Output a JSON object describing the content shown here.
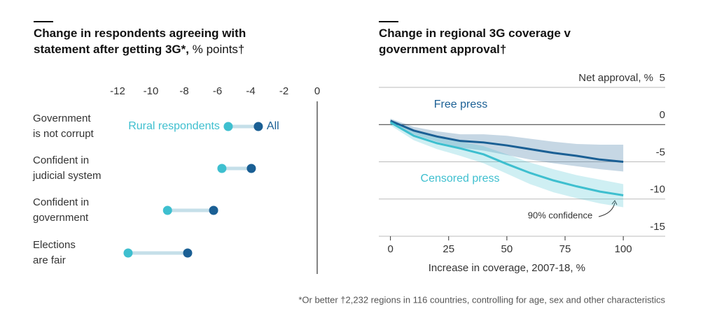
{
  "chart_data": [
    {
      "type": "dumbbell",
      "title": "Change in respondents agreeing with statement after getting 3G*,",
      "subtitle": "% points†",
      "categories": [
        [
          "Government",
          "is not corrupt"
        ],
        [
          "Confident in",
          "judicial system"
        ],
        [
          "Confident in",
          "government"
        ],
        [
          "Elections",
          "are fair"
        ]
      ],
      "series": [
        {
          "name": "Rural respondents",
          "color": "#3ebfcf",
          "values": [
            -5.35,
            -5.73,
            -9.0,
            -11.37
          ]
        },
        {
          "name": "All",
          "color": "#1a5f94",
          "values": [
            -3.54,
            -3.96,
            -6.23,
            -7.79
          ]
        }
      ],
      "xlim": [
        -12,
        0
      ],
      "xticks": [
        -12,
        -10,
        -8,
        -6,
        -4,
        -2,
        0
      ]
    },
    {
      "type": "band-line",
      "title": "Change in regional 3G coverage v government approval†",
      "x": [
        0,
        10,
        20,
        30,
        40,
        50,
        60,
        70,
        80,
        90,
        100
      ],
      "series": [
        {
          "name": "Free press",
          "color": "#1a5f94",
          "values": [
            0.5,
            -0.8,
            -1.6,
            -2.2,
            -2.4,
            -2.8,
            -3.3,
            -3.8,
            -4.2,
            -4.7,
            -5.0
          ],
          "lower": [
            0.2,
            -1.3,
            -2.3,
            -3.1,
            -3.5,
            -4.1,
            -4.7,
            -5.2,
            -5.6,
            -6.0,
            -6.3
          ],
          "upper": [
            0.8,
            -0.3,
            -0.9,
            -1.3,
            -1.3,
            -1.5,
            -1.9,
            -2.3,
            -2.6,
            -2.7,
            -2.7
          ]
        },
        {
          "name": "Censored press",
          "color": "#3ebfcf",
          "values": [
            0.3,
            -1.5,
            -2.5,
            -3.2,
            -4.0,
            -5.3,
            -6.5,
            -7.5,
            -8.3,
            -9.0,
            -9.5
          ],
          "lower": [
            -0.1,
            -2.1,
            -3.3,
            -4.2,
            -5.2,
            -6.6,
            -8.0,
            -9.1,
            -9.9,
            -10.6,
            -11.1
          ],
          "upper": [
            0.7,
            -0.9,
            -1.7,
            -2.3,
            -2.9,
            -4.0,
            -5.1,
            -6.0,
            -6.8,
            -7.4,
            -8.0
          ]
        }
      ],
      "xlim": [
        -5,
        118
      ],
      "xticks": [
        0,
        25,
        50,
        75,
        100
      ],
      "ylim": [
        -15,
        5
      ],
      "yticks": [
        5,
        0,
        -5,
        -10,
        -15
      ],
      "ylabel": "Net approval, %",
      "xlabel": "Increase in coverage, 2007-18, %",
      "annotation": "90% confidence"
    }
  ],
  "footnote": "*Or better †2,232 regions in 116 countries, controlling for age, sex and other characteristics"
}
